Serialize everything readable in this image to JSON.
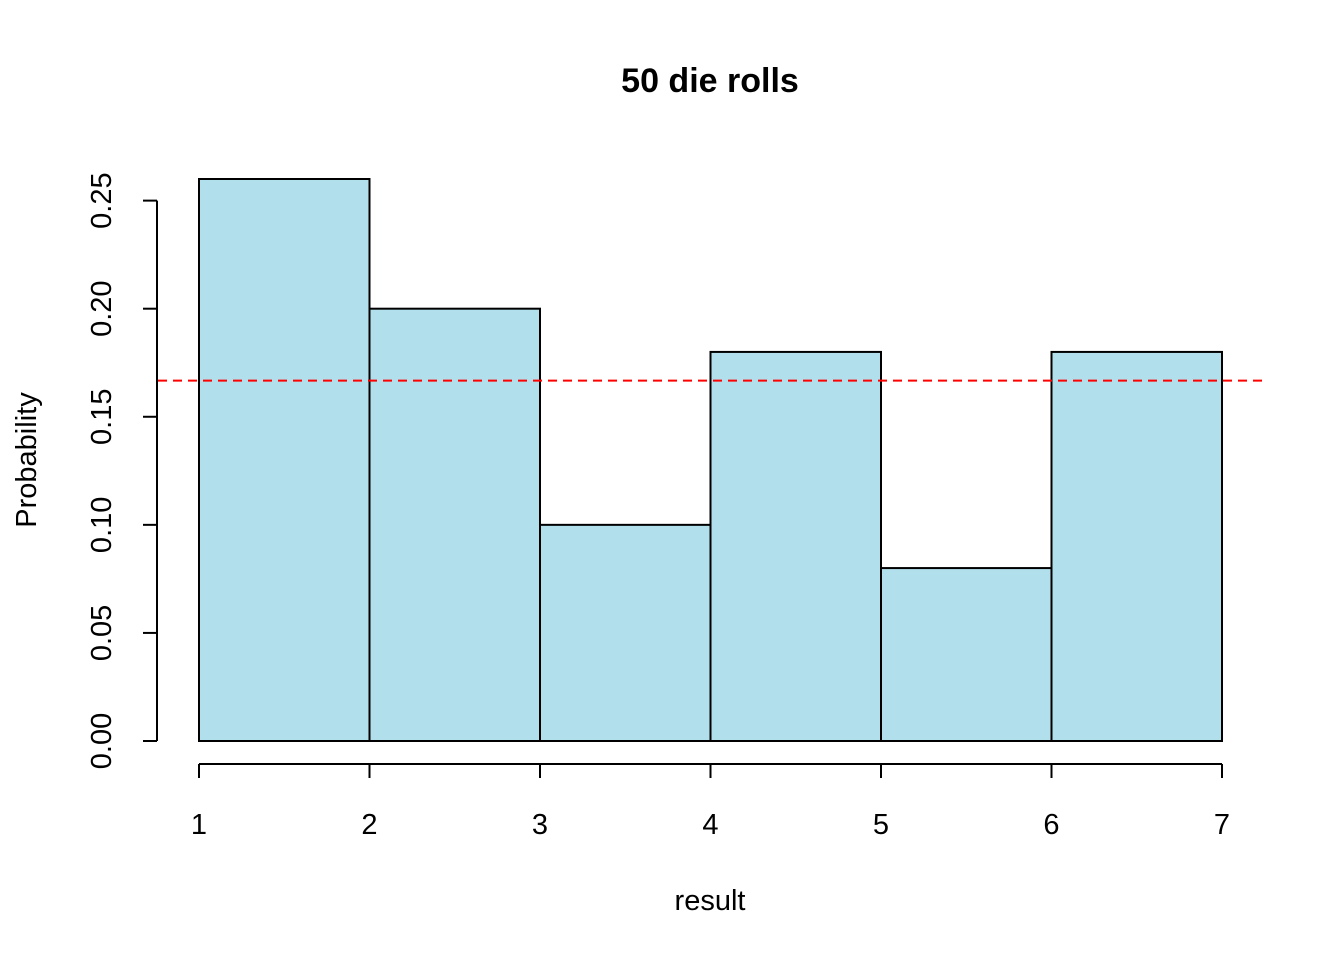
{
  "chart_data": {
    "type": "bar",
    "title": "50 die rolls",
    "xlabel": "result",
    "ylabel": "Probability",
    "bins": [
      {
        "start": 1,
        "end": 2,
        "value": 0.26
      },
      {
        "start": 2,
        "end": 3,
        "value": 0.2
      },
      {
        "start": 3,
        "end": 4,
        "value": 0.1
      },
      {
        "start": 4,
        "end": 5,
        "value": 0.18
      },
      {
        "start": 5,
        "end": 6,
        "value": 0.08
      },
      {
        "start": 6,
        "end": 7,
        "value": 0.18
      }
    ],
    "xlim": [
      1,
      7
    ],
    "ylim": [
      0,
      0.26
    ],
    "x_ticks": [
      "1",
      "2",
      "3",
      "4",
      "5",
      "6",
      "7"
    ],
    "y_ticks": [
      "0.00",
      "0.05",
      "0.10",
      "0.15",
      "0.20",
      "0.25"
    ],
    "reference_line": {
      "y": 0.1667,
      "style": "dashed",
      "color": "#ff0000"
    },
    "bar_color": "#b2dfec",
    "grid": false,
    "legend": "none"
  }
}
